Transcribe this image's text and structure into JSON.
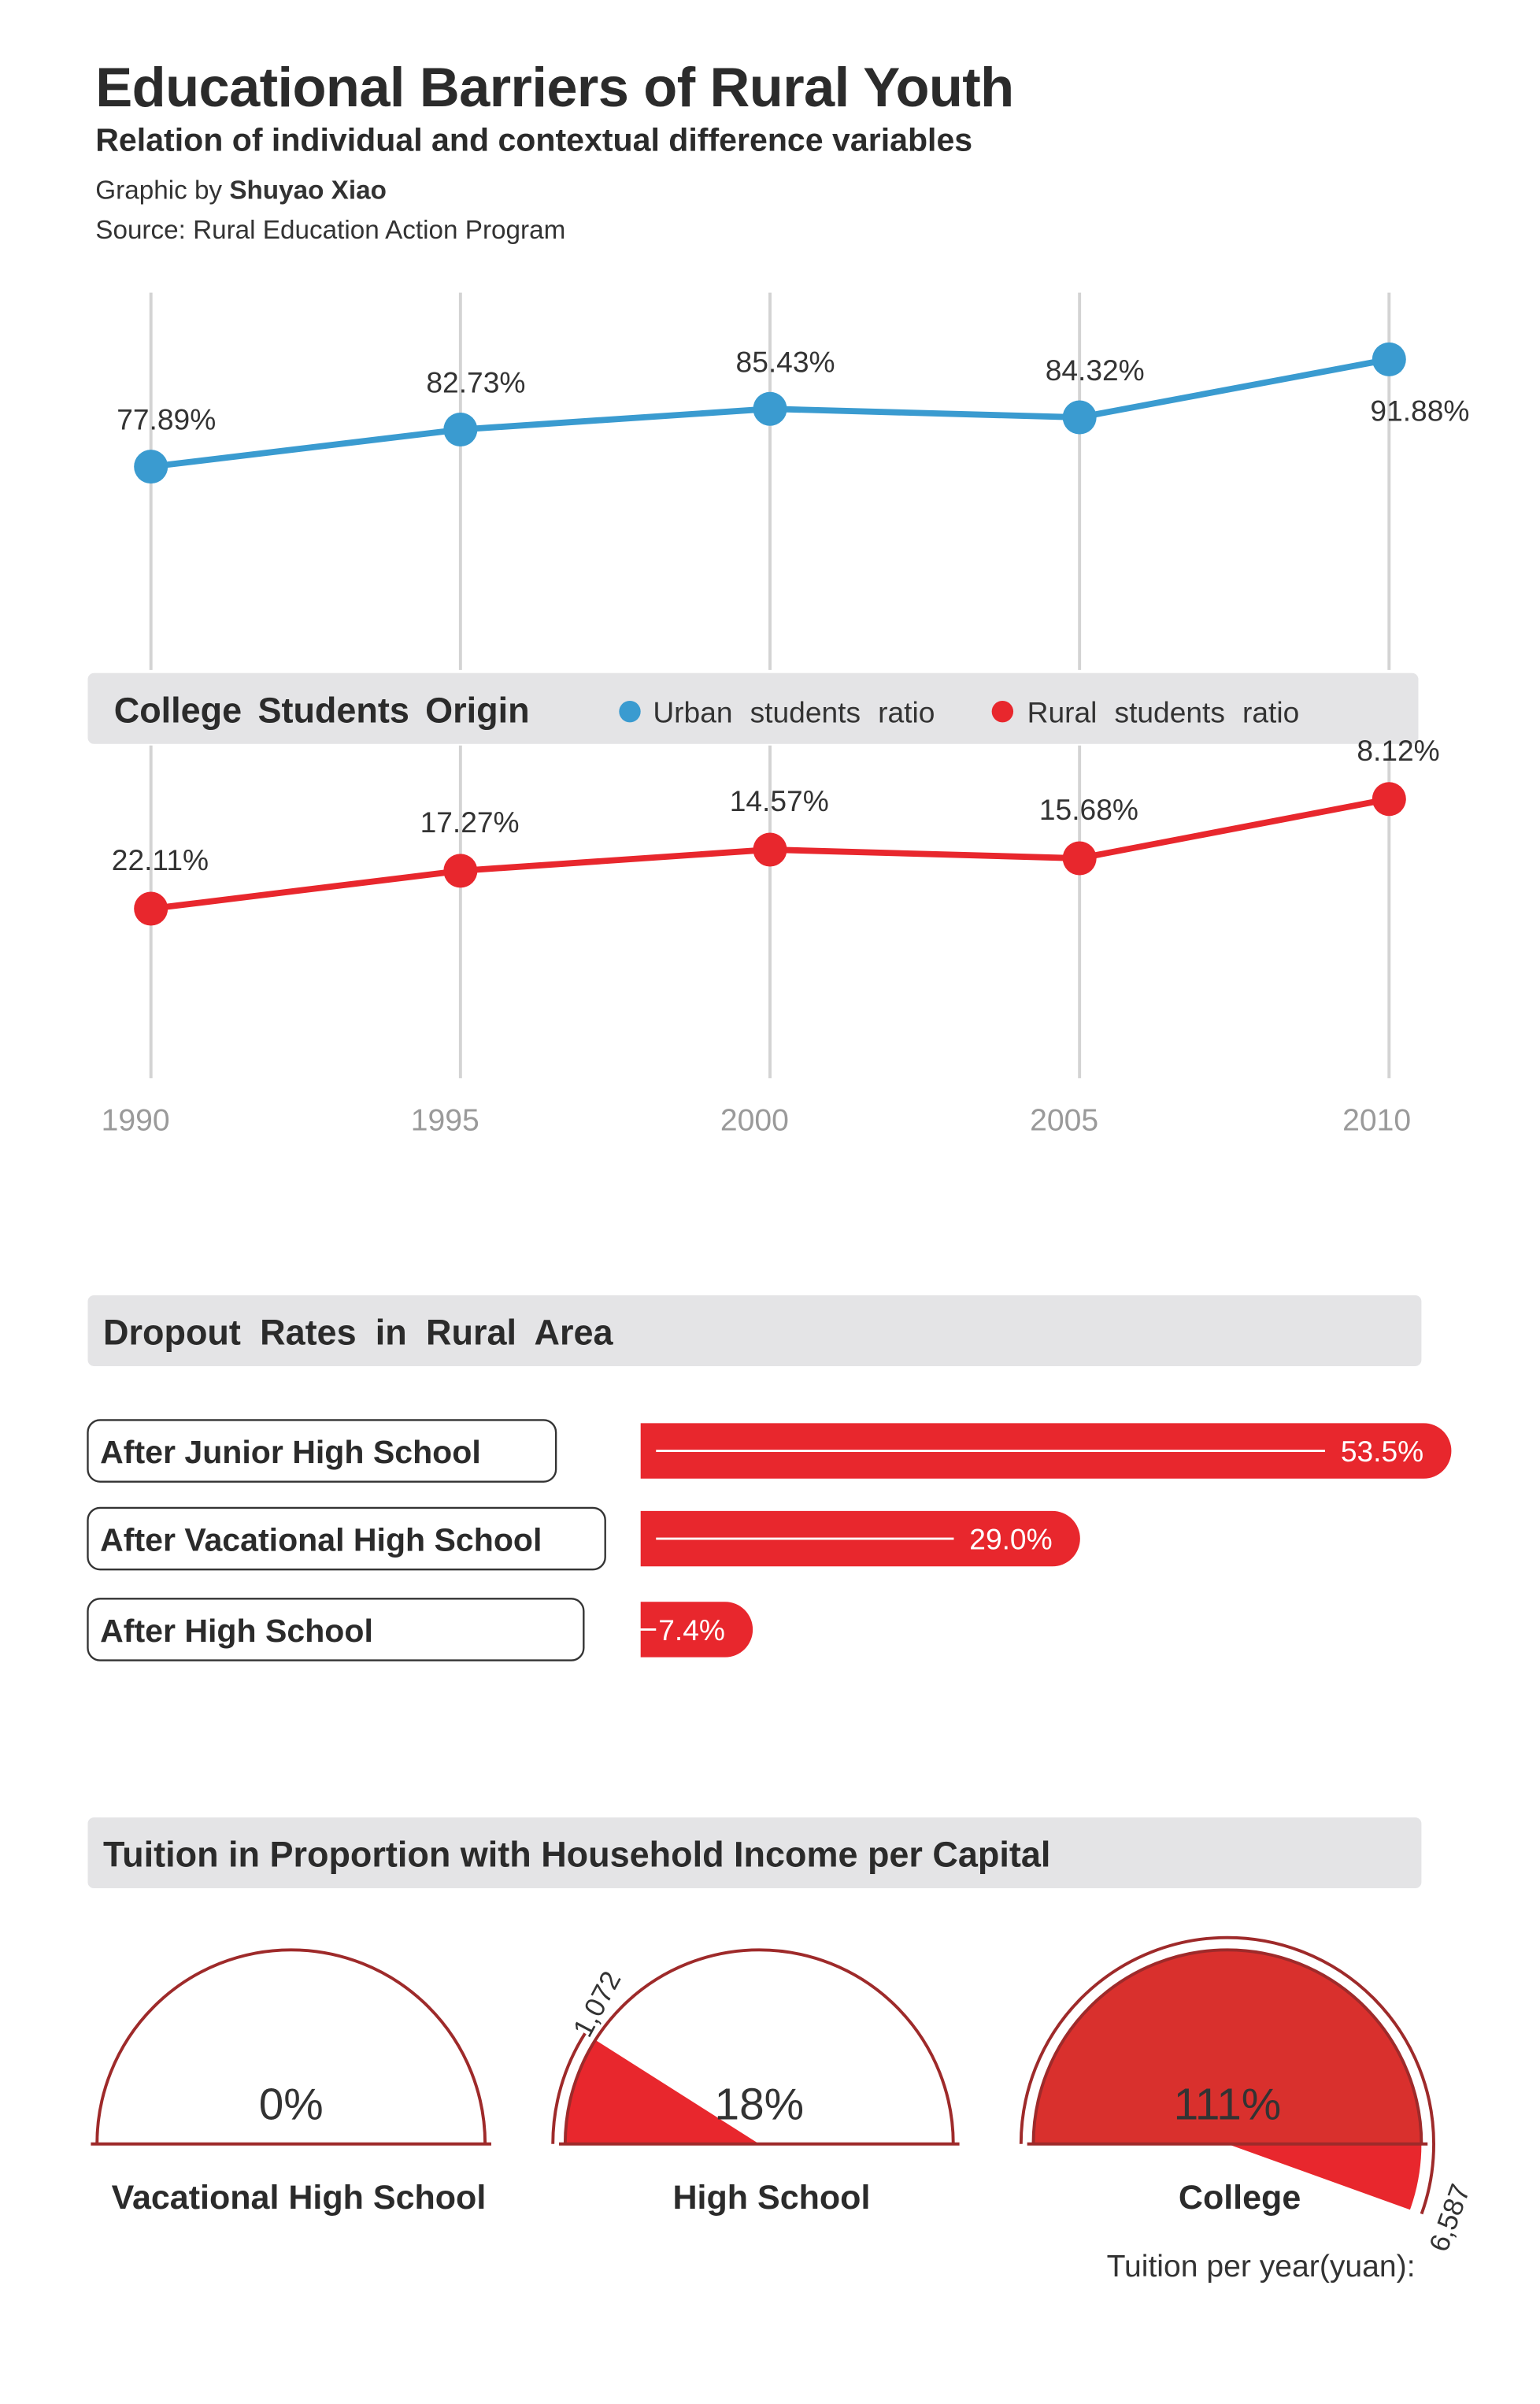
{
  "header": {
    "title": "Educational Barriers of Rural Youth",
    "subtitle": "Relation of individual and contextual difference variables",
    "credit_prefix": "Graphic by ",
    "credit_author": "Shuyao Xiao",
    "source": "Source: Rural Education Action Program"
  },
  "colors": {
    "urban": "#3a9bd0",
    "rural": "#e8272d",
    "band": "#e4e4e6",
    "gridline": "#d3d3d3",
    "gauge_outline": "#9e2a2a",
    "gauge_fill_college": "#d9302d",
    "text": "#2b2b2b",
    "axis_text": "#9a9a9a"
  },
  "chart_data": [
    {
      "type": "line",
      "title": "College Students Origin",
      "categories": [
        "1990",
        "1995",
        "2000",
        "2005",
        "2010"
      ],
      "series": [
        {
          "name": "Urban students ratio",
          "values": [
            77.89,
            82.73,
            85.43,
            84.32,
            91.88
          ],
          "labels": [
            "77.89%",
            "82.73%",
            "85.43%",
            "84.32%",
            "91.88%"
          ]
        },
        {
          "name": "Rural students ratio",
          "values": [
            22.11,
            17.27,
            14.57,
            15.68,
            8.12
          ],
          "labels": [
            "22.11%",
            "17.27%",
            "14.57%",
            "15.68%",
            "8.12%"
          ]
        }
      ],
      "legend": "top",
      "grid": true
    },
    {
      "type": "bar",
      "title": "Dropout Rates in Rural Area",
      "categories": [
        "After Junior High School",
        "After Vacational High School",
        "After High School"
      ],
      "values": [
        53.5,
        29.0,
        7.4
      ],
      "labels": [
        "53.5%",
        "29.0%",
        "7.4%"
      ]
    },
    {
      "type": "pie",
      "title": "Tuition in Proportion with Household Income per Capital",
      "categories": [
        "Vacational High School",
        "High School",
        "College"
      ],
      "values": [
        0,
        18,
        111
      ],
      "labels": [
        "0%",
        "18%",
        "111%"
      ],
      "tuition_labels": [
        "",
        "1,072",
        "6,587"
      ],
      "tuition_caption": "Tuition per year(yuan):"
    }
  ]
}
